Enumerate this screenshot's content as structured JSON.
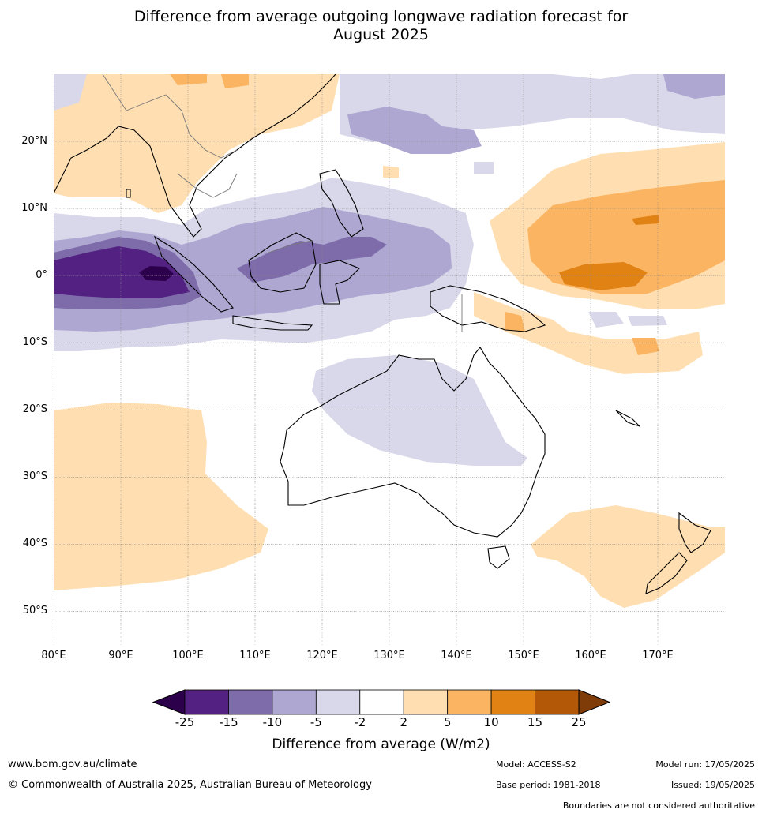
{
  "title": {
    "line1": "Difference from average outgoing longwave radiation forecast for",
    "line2": "August 2025"
  },
  "axes": {
    "lat_labels": [
      "20°N",
      "10°N",
      "0°",
      "10°S",
      "20°S",
      "30°S",
      "40°S",
      "50°S"
    ],
    "lat_values": [
      20,
      10,
      0,
      -10,
      -20,
      -30,
      -40,
      -50
    ],
    "lon_labels": [
      "80°E",
      "90°E",
      "100°E",
      "110°E",
      "120°E",
      "130°E",
      "140°E",
      "150°E",
      "160°E",
      "170°E"
    ],
    "lon_values": [
      80,
      90,
      100,
      110,
      120,
      130,
      140,
      150,
      160,
      170
    ],
    "lon_range": [
      80,
      180
    ],
    "lat_range": [
      -55,
      30
    ]
  },
  "colorbar": {
    "ticks": [
      "-25",
      "-15",
      "-10",
      "-5",
      "-2",
      "2",
      "5",
      "10",
      "15",
      "25"
    ],
    "colors": [
      "#532182",
      "#7e6caa",
      "#ada7d1",
      "#d8d8ea",
      "#ffffff",
      "#ffdfb2",
      "#fbb461",
      "#e08214",
      "#b35806"
    ],
    "extend_low_color": "#2d004b",
    "extend_high_color": "#7f3b08",
    "label": "Difference from average (W/m2)"
  },
  "footer": {
    "website": "www.bom.gov.au/climate",
    "copyright": "© Commonwealth of Australia 2025, Australian Bureau of Meteorology",
    "model": "Model: ACCESS-S2",
    "base_period": "Base period: 1981-2018",
    "model_run": "Model run: 17/05/2025",
    "issued": "Issued: 19/05/2025",
    "disclaimer": "Boundaries are not considered authoritative"
  }
}
